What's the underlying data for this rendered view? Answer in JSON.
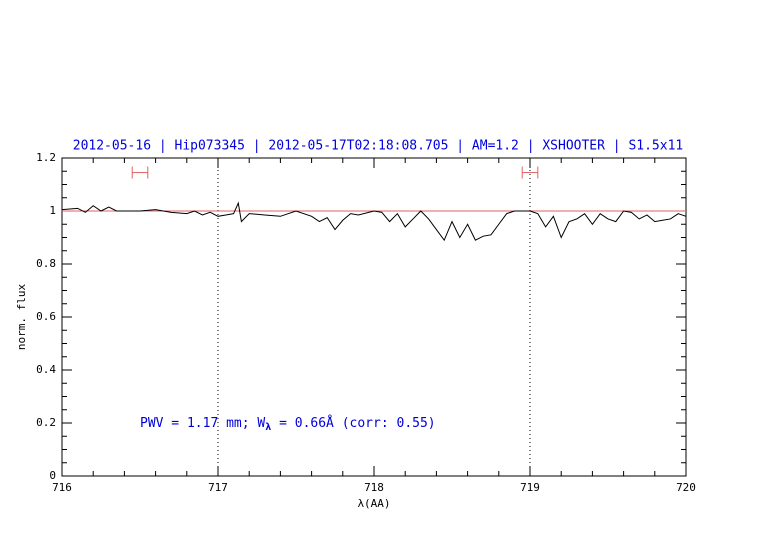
{
  "chart_data": {
    "type": "line",
    "title": "2012-05-16 | Hip073345 | 2012-05-17T02:18:08.705 | AM=1.2 | XSHOOTER | S1.5x11",
    "xlabel": "λ(AA)",
    "ylabel": "norm. flux",
    "annotation": [
      "PWV = 1.17 mm; W",
      "λ",
      " = 0.66Å (corr: 0.55)"
    ],
    "annotation_color": "#0000dd",
    "title_color": "#0000dd",
    "xlim": [
      716,
      720
    ],
    "ylim": [
      0,
      1.2
    ],
    "xticks": [
      716,
      717,
      718,
      719,
      720
    ],
    "yticks": [
      0,
      0.2,
      0.4,
      0.6,
      0.8,
      1,
      1.2
    ],
    "xminorticks": [
      716.2,
      716.4,
      716.6,
      716.8,
      717.2,
      717.4,
      717.6,
      717.8,
      718.2,
      718.4,
      718.6,
      718.8,
      719.2,
      719.4,
      719.6,
      719.8
    ],
    "yminorticks": [
      0.05,
      0.1,
      0.15,
      0.25,
      0.3,
      0.35,
      0.45,
      0.5,
      0.55,
      0.65,
      0.7,
      0.75,
      0.85,
      0.9,
      0.95,
      1.05,
      1.1,
      1.15
    ],
    "vlines": [
      717,
      719
    ],
    "reference_line": {
      "value": 1,
      "color": "#e06060"
    },
    "ranges": {
      "color": "#e06060",
      "y": 1.145,
      "spans": [
        [
          716.45,
          716.55
        ],
        [
          718.95,
          719.05
        ]
      ]
    },
    "x": [
      716.0,
      716.1,
      716.15,
      716.2,
      716.25,
      716.3,
      716.35,
      716.4,
      716.5,
      716.6,
      716.7,
      716.8,
      716.85,
      716.9,
      716.95,
      717.0,
      717.05,
      717.1,
      717.13,
      717.15,
      717.2,
      717.3,
      717.4,
      717.5,
      717.6,
      717.65,
      717.7,
      717.75,
      717.8,
      717.85,
      717.9,
      718.0,
      718.05,
      718.1,
      718.15,
      718.2,
      718.25,
      718.3,
      718.35,
      718.4,
      718.45,
      718.5,
      718.55,
      718.6,
      718.65,
      718.7,
      718.75,
      718.8,
      718.85,
      718.9,
      718.95,
      719.0,
      719.05,
      719.1,
      719.15,
      719.2,
      719.25,
      719.3,
      719.35,
      719.4,
      719.45,
      719.5,
      719.55,
      719.6,
      719.65,
      719.7,
      719.75,
      719.8,
      719.85,
      719.9,
      719.95,
      720.0
    ],
    "series": [
      {
        "color": "#000000",
        "values": [
          1.005,
          1.01,
          0.995,
          1.02,
          1.0,
          1.015,
          1.0,
          1.0,
          1.0,
          1.005,
          0.995,
          0.99,
          1.0,
          0.985,
          0.995,
          0.98,
          0.985,
          0.99,
          1.03,
          0.96,
          0.99,
          0.985,
          0.98,
          1.0,
          0.98,
          0.96,
          0.975,
          0.93,
          0.965,
          0.99,
          0.985,
          1.0,
          0.995,
          0.96,
          0.99,
          0.94,
          0.97,
          1.0,
          0.97,
          0.93,
          0.89,
          0.96,
          0.9,
          0.95,
          0.89,
          0.905,
          0.91,
          0.95,
          0.99,
          1.0,
          1.0,
          1.0,
          0.99,
          0.94,
          0.98,
          0.9,
          0.96,
          0.97,
          0.99,
          0.95,
          0.99,
          0.97,
          0.96,
          1.0,
          0.995,
          0.97,
          0.985,
          0.96,
          0.965,
          0.97,
          0.99,
          0.98
        ]
      }
    ]
  }
}
